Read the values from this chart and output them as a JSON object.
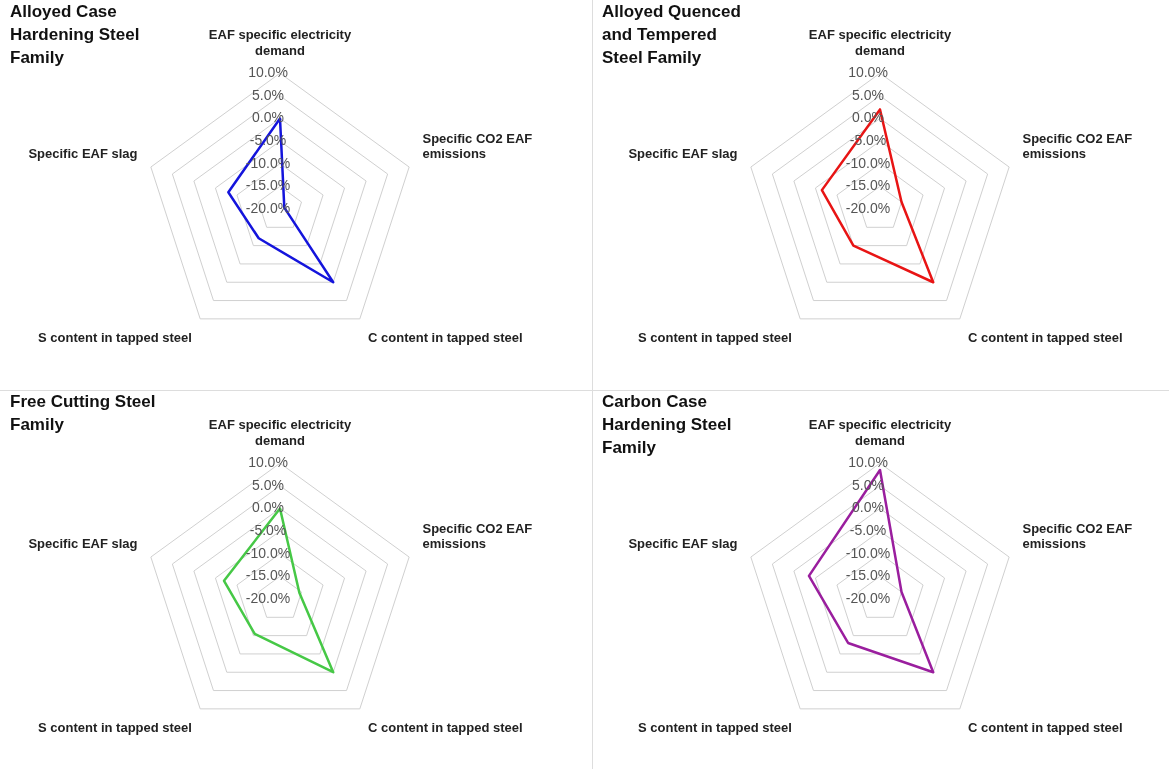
{
  "chart_data": [
    {
      "type": "radar",
      "title": "Alloyed Case Hardening Steel Family",
      "categories": [
        "EAF specific electricity demand",
        "Specific CO2 EAF emissions",
        "C content in tapped steel",
        "S content in tapped steel",
        "Specific EAF slag"
      ],
      "series": [
        {
          "color": "#1414dc",
          "values": [
            0,
            -19,
            0,
            -12,
            -8
          ]
        }
      ],
      "ylim": [
        -20,
        10
      ],
      "yticks": [
        {
          "value": -20,
          "label": "-20.0%"
        },
        {
          "value": -15,
          "label": "-15.0%"
        },
        {
          "value": -10,
          "label": "-10.0%"
        },
        {
          "value": -5,
          "label": "-5.0%"
        },
        {
          "value": 0,
          "label": "0.0%"
        },
        {
          "value": 5,
          "label": "5.0%"
        },
        {
          "value": 10,
          "label": "10.0%"
        }
      ],
      "grid": true,
      "legend": false
    },
    {
      "type": "radar",
      "title": "Alloyed Quenced and Tempered Steel Family",
      "categories": [
        "EAF specific electricity demand",
        "Specific CO2 EAF emissions",
        "C content in tapped steel",
        "S content in tapped steel",
        "Specific EAF slag"
      ],
      "series": [
        {
          "color": "#e81414",
          "values": [
            2,
            -15,
            0,
            -10,
            -6.5
          ]
        }
      ],
      "ylim": [
        -20,
        10
      ],
      "yticks": [
        {
          "value": -20,
          "label": "-20.0%"
        },
        {
          "value": -15,
          "label": "-15.0%"
        },
        {
          "value": -10,
          "label": "-10.0%"
        },
        {
          "value": -5,
          "label": "-5.0%"
        },
        {
          "value": 0,
          "label": "0.0%"
        },
        {
          "value": 5,
          "label": "5.0%"
        },
        {
          "value": 10,
          "label": "10.0%"
        }
      ],
      "grid": true,
      "legend": false
    },
    {
      "type": "radar",
      "title": "Free Cutting Steel Family",
      "categories": [
        "EAF specific electricity demand",
        "Specific CO2 EAF emissions",
        "C content in tapped steel",
        "S content in tapped steel",
        "Specific EAF slag"
      ],
      "series": [
        {
          "color": "#46c846",
          "values": [
            0,
            -15.5,
            0,
            -10.5,
            -7
          ]
        }
      ],
      "ylim": [
        -20,
        10
      ],
      "yticks": [
        {
          "value": -20,
          "label": "-20.0%"
        },
        {
          "value": -15,
          "label": "-15.0%"
        },
        {
          "value": -10,
          "label": "-10.0%"
        },
        {
          "value": -5,
          "label": "-5.0%"
        },
        {
          "value": 0,
          "label": "0.0%"
        },
        {
          "value": 5,
          "label": "5.0%"
        },
        {
          "value": 10,
          "label": "10.0%"
        }
      ],
      "grid": true,
      "legend": false
    },
    {
      "type": "radar",
      "title": "Carbon Case Hardening Steel Family",
      "categories": [
        "EAF specific electricity demand",
        "Specific CO2 EAF emissions",
        "C content in tapped steel",
        "S content in tapped steel",
        "Specific EAF slag"
      ],
      "series": [
        {
          "color": "#9a1e9e",
          "values": [
            8.5,
            -15,
            0,
            -8,
            -3.5
          ]
        }
      ],
      "ylim": [
        -20,
        10
      ],
      "yticks": [
        {
          "value": -20,
          "label": "-20.0%"
        },
        {
          "value": -15,
          "label": "-15.0%"
        },
        {
          "value": -10,
          "label": "-10.0%"
        },
        {
          "value": -5,
          "label": "-5.0%"
        },
        {
          "value": 0,
          "label": "0.0%"
        },
        {
          "value": 5,
          "label": "5.0%"
        },
        {
          "value": 10,
          "label": "10.0%"
        }
      ],
      "grid": true,
      "legend": false
    }
  ]
}
